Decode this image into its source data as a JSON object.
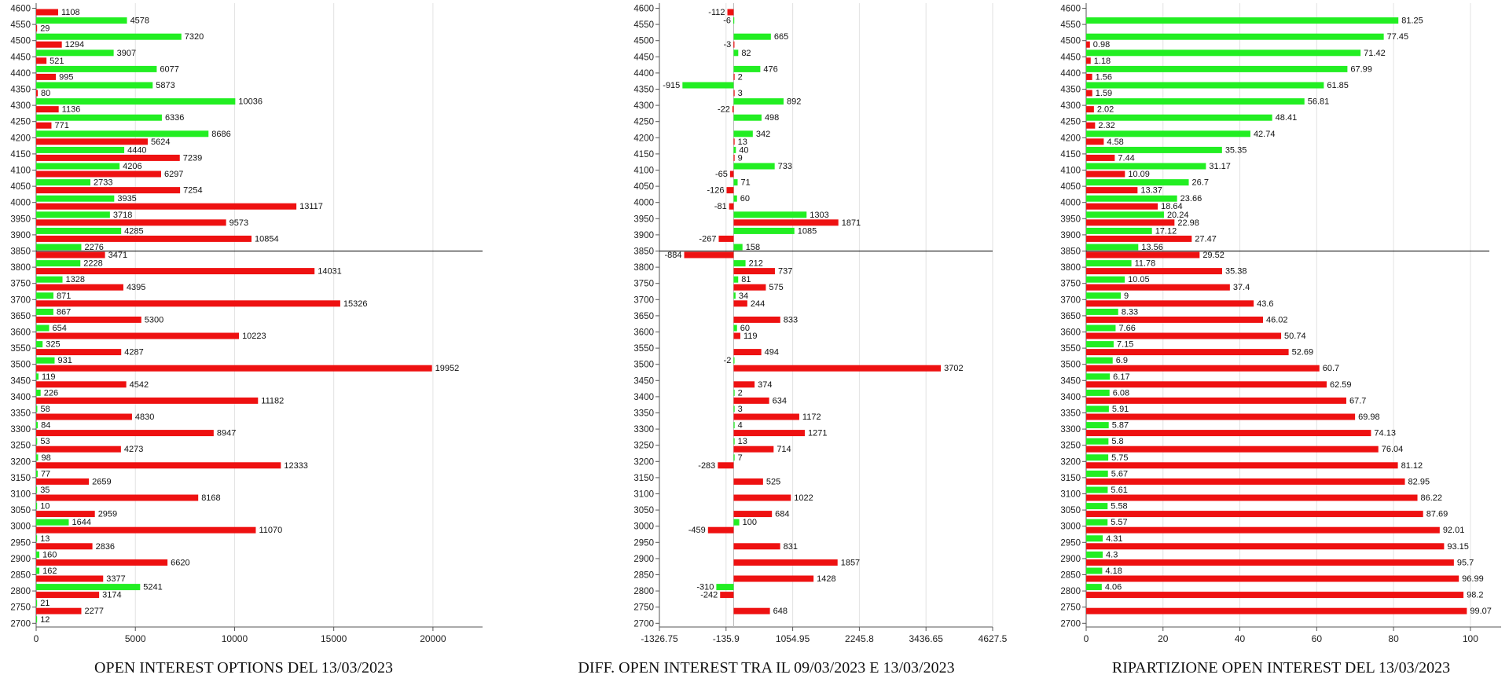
{
  "chart_data": [
    {
      "type": "bar",
      "orientation": "horizontal",
      "title": "OPEN INTEREST OPTIONS DEL 13/03/2023",
      "categories": [
        "4600",
        "4550",
        "4500",
        "4450",
        "4400",
        "4350",
        "4300",
        "4250",
        "4200",
        "4150",
        "4100",
        "4050",
        "4000",
        "3950",
        "3900",
        "3850",
        "3800",
        "3750",
        "3700",
        "3650",
        "3600",
        "3550",
        "3500",
        "3450",
        "3400",
        "3350",
        "3300",
        "3250",
        "3200",
        "3150",
        "3100",
        "3050",
        "3000",
        "2950",
        "2900",
        "2850",
        "2800",
        "2750",
        "2700"
      ],
      "series": [
        {
          "color": "#22ee22",
          "values": [
            null,
            4578,
            7320,
            3907,
            6077,
            5873,
            10036,
            6336,
            8686,
            4440,
            4206,
            2733,
            3935,
            3718,
            4285,
            2276,
            2228,
            1328,
            871,
            867,
            654,
            325,
            931,
            119,
            226,
            58,
            84,
            53,
            98,
            77,
            35,
            10,
            1644,
            13,
            160,
            162,
            5241,
            21,
            12
          ]
        },
        {
          "color": "#ee1111",
          "values": [
            1108,
            29,
            1294,
            521,
            995,
            80,
            1136,
            771,
            5624,
            7239,
            6297,
            7254,
            13117,
            9573,
            10854,
            3471,
            14031,
            4395,
            15326,
            5300,
            10223,
            4287,
            19952,
            4542,
            11182,
            4830,
            8947,
            4273,
            12333,
            2659,
            8168,
            2959,
            11070,
            2836,
            6620,
            3377,
            3174,
            2277,
            null
          ]
        }
      ],
      "xlim": [
        0,
        22500
      ],
      "xticks": [
        0,
        5000,
        10000,
        15000,
        20000
      ],
      "xtick_labels": [
        "0",
        "5000",
        "10000",
        "15000",
        "20000"
      ],
      "reference_line_at": "3850",
      "grid": "vertical"
    },
    {
      "type": "bar",
      "orientation": "horizontal",
      "title": "DIFF. OPEN INTEREST TRA IL 09/03/2023 E 13/03/2023",
      "categories": [
        "4600",
        "4550",
        "4500",
        "4450",
        "4400",
        "4350",
        "4300",
        "4250",
        "4200",
        "4150",
        "4100",
        "4050",
        "4000",
        "3950",
        "3900",
        "3850",
        "3800",
        "3750",
        "3700",
        "3650",
        "3600",
        "3550",
        "3500",
        "3450",
        "3400",
        "3350",
        "3300",
        "3250",
        "3200",
        "3150",
        "3100",
        "3050",
        "3000",
        "2950",
        "2900",
        "2850",
        "2800",
        "2750",
        "2700"
      ],
      "series": [
        {
          "color": "#22ee22",
          "values": [
            null,
            -6,
            665,
            82,
            476,
            -915,
            892,
            498,
            342,
            40,
            733,
            71,
            60,
            1303,
            1085,
            158,
            212,
            81,
            34,
            null,
            60,
            null,
            -2,
            null,
            2,
            3,
            4,
            13,
            7,
            null,
            null,
            null,
            100,
            null,
            null,
            null,
            -310,
            null,
            null
          ]
        },
        {
          "color": "#ee1111",
          "values": [
            -112,
            null,
            -3,
            null,
            2,
            3,
            -22,
            null,
            13,
            9,
            -65,
            -126,
            -81,
            1871,
            -267,
            -884,
            737,
            575,
            244,
            833,
            119,
            494,
            3702,
            374,
            634,
            1172,
            1271,
            714,
            -283,
            525,
            1022,
            684,
            -459,
            831,
            1857,
            1428,
            -242,
            648,
            null
          ]
        }
      ],
      "xlim": [
        -1326.75,
        4627.5
      ],
      "xticks": [
        -1326.75,
        -135.9,
        1054.95,
        2245.8,
        3436.65,
        4627.5
      ],
      "xtick_labels": [
        "-1326.75",
        "-135.9",
        "1054.95",
        "2245.8",
        "3436.65",
        "4627.5"
      ],
      "zero_line": true,
      "reference_line_at": "3850",
      "grid": "vertical"
    },
    {
      "type": "bar",
      "orientation": "horizontal",
      "title": "RIPARTIZIONE OPEN INTEREST DEL 13/03/2023",
      "categories": [
        "4600",
        "4550",
        "4500",
        "4450",
        "4400",
        "4350",
        "4300",
        "4250",
        "4200",
        "4150",
        "4100",
        "4050",
        "4000",
        "3950",
        "3900",
        "3850",
        "3800",
        "3750",
        "3700",
        "3650",
        "3600",
        "3550",
        "3500",
        "3450",
        "3400",
        "3350",
        "3300",
        "3250",
        "3200",
        "3150",
        "3100",
        "3050",
        "3000",
        "2950",
        "2900",
        "2850",
        "2800",
        "2750",
        "2700"
      ],
      "series": [
        {
          "color": "#22ee22",
          "values": [
            null,
            81.25,
            77.45,
            71.42,
            67.99,
            61.85,
            56.81,
            48.41,
            42.74,
            35.35,
            31.17,
            26.7,
            23.66,
            20.24,
            17.12,
            13.56,
            11.78,
            10.05,
            9,
            8.33,
            7.66,
            7.15,
            6.9,
            6.17,
            6.08,
            5.91,
            5.87,
            5.8,
            5.75,
            5.67,
            5.61,
            5.58,
            5.57,
            4.31,
            4.3,
            4.18,
            4.06,
            null,
            null
          ]
        },
        {
          "color": "#ee1111",
          "values": [
            null,
            null,
            0.98,
            1.18,
            1.56,
            1.59,
            2.02,
            2.32,
            4.58,
            7.44,
            10.09,
            13.37,
            18.64,
            22.98,
            27.47,
            29.52,
            35.38,
            37.4,
            43.6,
            46.02,
            50.74,
            52.69,
            60.7,
            62.59,
            67.7,
            69.98,
            74.13,
            76.04,
            81.12,
            82.95,
            86.22,
            87.69,
            92.01,
            93.15,
            95.7,
            96.99,
            98.2,
            99.07,
            null
          ]
        }
      ],
      "xlim": [
        0,
        108
      ],
      "xticks": [
        0,
        20,
        40,
        60,
        80,
        100
      ],
      "xtick_labels": [
        "0",
        "20",
        "40",
        "60",
        "80",
        "100"
      ],
      "reference_line_at": "3850",
      "grid": "vertical"
    }
  ]
}
